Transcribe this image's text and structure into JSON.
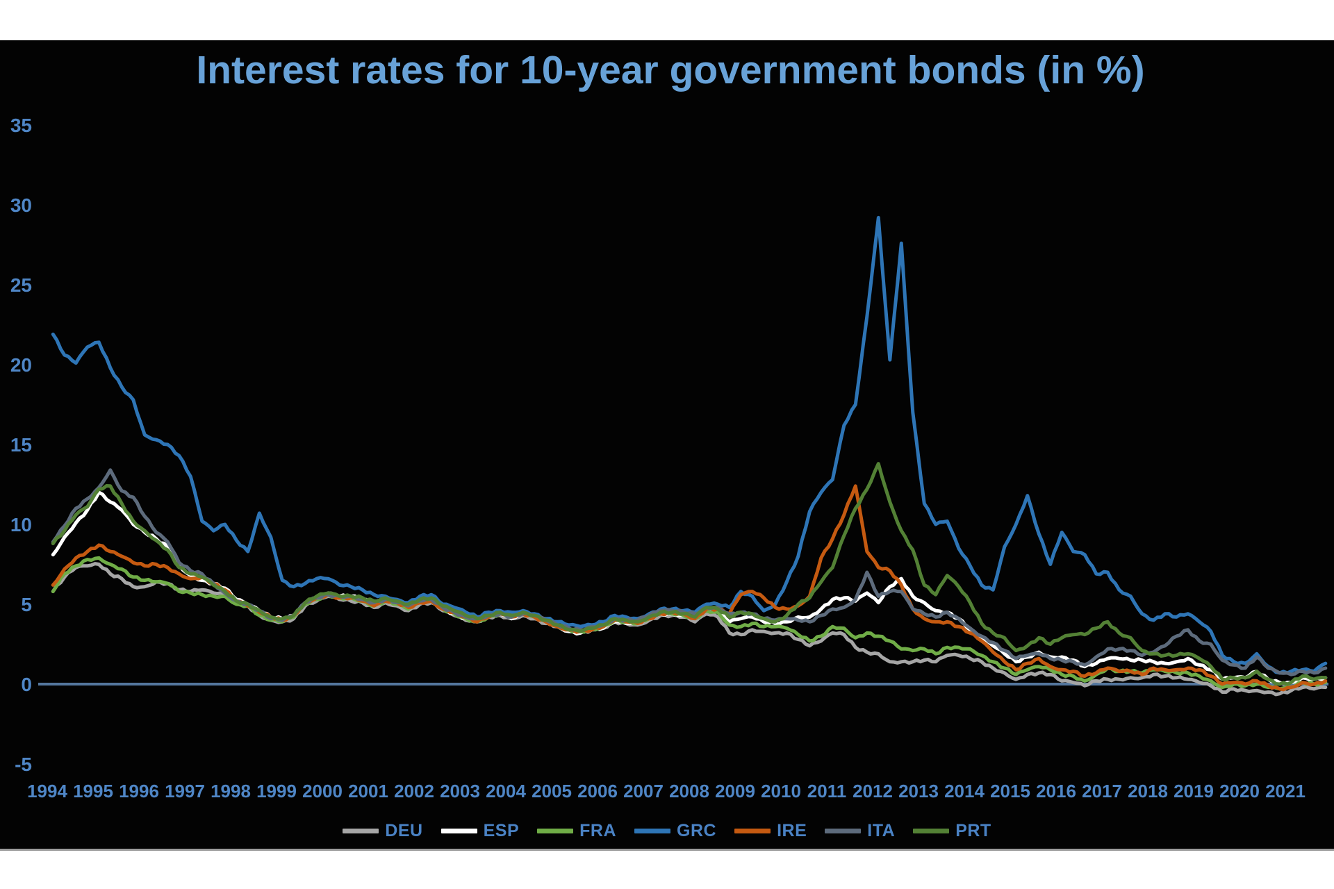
{
  "title": "Interest rates for 10-year government bonds (in %)",
  "style": {
    "page_background": "#ffffff",
    "panel_background": "#030303",
    "title_color": "#68a2d8",
    "tick_color": "#4f86c6",
    "legend_label_color": "#4a82c4",
    "zero_line_color": "#54779e"
  },
  "chart_data": {
    "type": "line",
    "title": "Interest rates for 10-year government bonds (in %)",
    "xlabel": "",
    "ylabel": "",
    "x_unit": "year, monthly series shown quarterly",
    "x_start": 1994.125,
    "x_step": 0.25,
    "x_range": [
      1994,
      2022
    ],
    "ylim": [
      -5,
      35
    ],
    "grid": "off",
    "zero_line": true,
    "legend_position": "bottom",
    "y_axis": {
      "ticks": [
        35,
        30,
        25,
        20,
        15,
        10,
        5,
        0,
        -5
      ]
    },
    "x_tick_labels": [
      "1994",
      "1995",
      "1996",
      "1997",
      "1998",
      "1999",
      "2000",
      "2001",
      "2002",
      "2003",
      "2004",
      "2005",
      "2006",
      "2007",
      "2008",
      "2009",
      "2010",
      "2011",
      "2012",
      "2013",
      "2014",
      "2015",
      "2016",
      "2017",
      "2018",
      "2019",
      "2020",
      "2021"
    ],
    "series": [
      {
        "name": "DEU",
        "color": "#a6a6a6",
        "values": [
          5.8,
          6.7,
          7.3,
          7.4,
          7.5,
          6.9,
          6.6,
          6.1,
          6.1,
          6.4,
          6.3,
          5.9,
          5.8,
          5.9,
          5.7,
          5.6,
          5.1,
          4.9,
          4.3,
          4.0,
          3.9,
          4.1,
          4.9,
          5.2,
          5.5,
          5.3,
          5.2,
          5.1,
          4.8,
          5.1,
          4.9,
          4.6,
          5.0,
          5.1,
          4.6,
          4.3,
          4.0,
          3.9,
          4.2,
          4.3,
          4.1,
          4.3,
          4.1,
          3.8,
          3.6,
          3.3,
          3.2,
          3.4,
          3.5,
          3.9,
          3.8,
          3.7,
          4.0,
          4.3,
          4.3,
          4.2,
          3.9,
          4.4,
          4.2,
          3.2,
          3.1,
          3.4,
          3.3,
          3.2,
          3.2,
          2.8,
          2.4,
          2.7,
          3.2,
          3.1,
          2.3,
          2.0,
          1.9,
          1.4,
          1.4,
          1.4,
          1.5,
          1.4,
          1.8,
          1.8,
          1.6,
          1.4,
          1.0,
          0.7,
          0.3,
          0.6,
          0.7,
          0.6,
          0.2,
          0.1,
          -0.1,
          0.2,
          0.3,
          0.3,
          0.4,
          0.4,
          0.6,
          0.5,
          0.4,
          0.3,
          0.1,
          -0.1,
          -0.5,
          -0.3,
          -0.4,
          -0.4,
          -0.5,
          -0.6,
          -0.4,
          -0.2,
          -0.3,
          -0.2
        ]
      },
      {
        "name": "ESP",
        "color": "#ffffff",
        "values": [
          8.1,
          9.2,
          10.1,
          10.9,
          12.0,
          11.4,
          10.9,
          10.0,
          9.5,
          9.1,
          8.6,
          7.4,
          6.8,
          6.5,
          6.3,
          6.0,
          5.3,
          5.0,
          4.6,
          4.2,
          4.1,
          4.3,
          5.1,
          5.4,
          5.7,
          5.5,
          5.5,
          5.3,
          5.1,
          5.3,
          5.1,
          4.9,
          5.2,
          5.3,
          4.7,
          4.4,
          4.1,
          3.9,
          4.2,
          4.4,
          4.1,
          4.4,
          4.2,
          3.9,
          3.6,
          3.3,
          3.2,
          3.4,
          3.5,
          3.9,
          3.8,
          3.8,
          4.1,
          4.4,
          4.4,
          4.3,
          4.2,
          4.7,
          4.6,
          3.9,
          4.1,
          4.2,
          3.9,
          3.8,
          3.9,
          4.2,
          4.2,
          4.7,
          5.3,
          5.4,
          5.2,
          5.7,
          5.1,
          6.1,
          6.6,
          5.5,
          5.1,
          4.6,
          4.5,
          4.1,
          3.4,
          2.9,
          2.4,
          1.9,
          1.4,
          1.7,
          2.0,
          1.7,
          1.7,
          1.5,
          1.1,
          1.3,
          1.6,
          1.6,
          1.5,
          1.5,
          1.4,
          1.3,
          1.4,
          1.6,
          1.2,
          0.9,
          0.3,
          0.4,
          0.4,
          0.8,
          0.3,
          0.1,
          0.1,
          0.4,
          0.3,
          0.4
        ]
      },
      {
        "name": "FRA",
        "color": "#70ad47",
        "values": [
          5.8,
          6.9,
          7.4,
          7.8,
          7.9,
          7.5,
          7.2,
          6.7,
          6.5,
          6.4,
          6.3,
          5.8,
          5.7,
          5.6,
          5.5,
          5.5,
          5.0,
          4.9,
          4.3,
          4.0,
          3.9,
          4.2,
          5.0,
          5.3,
          5.6,
          5.4,
          5.4,
          5.2,
          4.9,
          5.2,
          5.0,
          4.7,
          5.1,
          5.2,
          4.7,
          4.4,
          4.1,
          3.9,
          4.2,
          4.4,
          4.2,
          4.4,
          4.2,
          3.9,
          3.6,
          3.4,
          3.3,
          3.4,
          3.6,
          4.0,
          3.9,
          3.8,
          4.1,
          4.4,
          4.4,
          4.3,
          4.1,
          4.6,
          4.5,
          3.7,
          3.6,
          3.8,
          3.6,
          3.6,
          3.5,
          3.1,
          2.7,
          3.0,
          3.6,
          3.5,
          2.9,
          3.2,
          3.0,
          2.7,
          2.2,
          2.1,
          2.2,
          1.9,
          2.3,
          2.3,
          2.2,
          1.8,
          1.4,
          1.0,
          0.6,
          0.9,
          1.1,
          0.9,
          0.6,
          0.5,
          0.2,
          0.6,
          1.0,
          0.8,
          0.8,
          0.7,
          0.9,
          0.8,
          0.7,
          0.7,
          0.5,
          0.2,
          -0.2,
          0.0,
          -0.1,
          0.0,
          -0.2,
          -0.3,
          -0.2,
          0.1,
          0.0,
          0.1
        ]
      },
      {
        "name": "GRC",
        "color": "#2e75b6",
        "values": [
          21.9,
          20.6,
          20.1,
          21.1,
          21.4,
          19.8,
          18.6,
          17.8,
          15.6,
          15.3,
          15.0,
          14.3,
          13.0,
          10.2,
          9.6,
          10.0,
          9.0,
          8.3,
          10.7,
          9.2,
          6.5,
          6.1,
          6.3,
          6.6,
          6.6,
          6.2,
          6.1,
          5.9,
          5.6,
          5.5,
          5.3,
          5.1,
          5.5,
          5.6,
          5.0,
          4.8,
          4.5,
          4.2,
          4.5,
          4.6,
          4.5,
          4.6,
          4.4,
          4.1,
          3.9,
          3.7,
          3.6,
          3.7,
          3.9,
          4.3,
          4.2,
          4.1,
          4.4,
          4.7,
          4.7,
          4.6,
          4.5,
          5.0,
          5.0,
          4.8,
          5.8,
          5.5,
          4.6,
          5.0,
          6.4,
          8.0,
          10.8,
          12.0,
          12.8,
          16.2,
          17.5,
          23.0,
          29.2,
          20.3,
          27.6,
          17.0,
          11.3,
          10.0,
          10.2,
          8.5,
          7.4,
          6.2,
          5.9,
          8.6,
          10.0,
          11.8,
          9.4,
          7.5,
          9.5,
          8.3,
          8.1,
          6.9,
          7.0,
          5.9,
          5.5,
          4.4,
          4.0,
          4.4,
          4.2,
          4.4,
          3.9,
          3.3,
          1.8,
          1.4,
          1.3,
          1.9,
          1.1,
          0.7,
          0.8,
          0.9,
          0.8,
          1.3
        ]
      },
      {
        "name": "IRE",
        "color": "#c55a11",
        "values": [
          6.2,
          7.2,
          7.9,
          8.3,
          8.7,
          8.3,
          8.0,
          7.6,
          7.4,
          7.5,
          7.3,
          6.9,
          6.6,
          6.7,
          6.3,
          5.9,
          5.2,
          4.9,
          4.5,
          4.2,
          4.0,
          4.3,
          5.1,
          5.4,
          5.6,
          5.4,
          5.4,
          5.2,
          4.9,
          5.2,
          5.1,
          4.8,
          5.1,
          5.2,
          4.7,
          4.5,
          4.2,
          3.9,
          4.2,
          4.4,
          4.2,
          4.4,
          4.2,
          3.9,
          3.6,
          3.4,
          3.3,
          3.4,
          3.6,
          4.0,
          3.9,
          3.8,
          4.1,
          4.4,
          4.5,
          4.4,
          4.1,
          4.7,
          4.7,
          4.4,
          5.6,
          5.8,
          5.4,
          4.8,
          4.7,
          4.9,
          5.5,
          7.9,
          9.1,
          10.6,
          12.4,
          8.3,
          7.3,
          7.1,
          6.2,
          4.7,
          4.1,
          3.9,
          3.9,
          3.6,
          3.2,
          2.7,
          2.0,
          1.4,
          0.9,
          1.3,
          1.6,
          1.1,
          0.9,
          0.8,
          0.5,
          0.7,
          1.0,
          0.8,
          0.8,
          0.6,
          1.0,
          0.9,
          0.9,
          1.0,
          0.9,
          0.5,
          0.0,
          0.1,
          0.0,
          0.2,
          -0.1,
          -0.3,
          -0.2,
          0.1,
          0.0,
          0.2
        ]
      },
      {
        "name": "ITA",
        "color": "#5d6b7c",
        "values": [
          8.9,
          9.9,
          11.0,
          11.6,
          12.3,
          13.4,
          12.1,
          11.7,
          10.5,
          9.5,
          8.9,
          7.6,
          7.1,
          6.9,
          6.3,
          5.7,
          5.2,
          5.0,
          4.6,
          4.1,
          4.0,
          4.3,
          5.1,
          5.4,
          5.6,
          5.5,
          5.5,
          5.3,
          5.1,
          5.3,
          5.1,
          4.9,
          5.2,
          5.3,
          4.8,
          4.5,
          4.2,
          4.1,
          4.3,
          4.4,
          4.2,
          4.4,
          4.3,
          4.0,
          3.7,
          3.5,
          3.4,
          3.6,
          3.7,
          4.1,
          4.0,
          4.0,
          4.3,
          4.6,
          4.6,
          4.5,
          4.4,
          4.8,
          4.8,
          4.4,
          4.5,
          4.4,
          4.1,
          4.0,
          4.1,
          4.0,
          3.9,
          4.3,
          4.7,
          4.8,
          5.3,
          7.0,
          5.5,
          5.8,
          5.8,
          4.7,
          4.4,
          4.2,
          4.5,
          4.1,
          3.5,
          3.0,
          2.6,
          2.1,
          1.6,
          1.8,
          1.9,
          1.6,
          1.5,
          1.4,
          1.2,
          1.7,
          2.2,
          2.2,
          2.1,
          1.8,
          2.0,
          2.4,
          3.0,
          3.4,
          2.7,
          2.5,
          1.5,
          1.2,
          1.0,
          1.7,
          1.0,
          0.7,
          0.6,
          0.8,
          0.7,
          1.0
        ]
      },
      {
        "name": "PRT",
        "color": "#538135",
        "values": [
          8.8,
          9.6,
          10.6,
          11.1,
          12.2,
          12.4,
          11.3,
          10.2,
          9.6,
          9.0,
          8.4,
          7.3,
          6.9,
          6.7,
          6.2,
          5.8,
          5.2,
          5.0,
          4.6,
          4.2,
          4.1,
          4.3,
          5.1,
          5.5,
          5.7,
          5.5,
          5.5,
          5.4,
          5.2,
          5.4,
          5.2,
          5.0,
          5.3,
          5.4,
          4.9,
          4.6,
          4.3,
          4.1,
          4.3,
          4.5,
          4.3,
          4.5,
          4.3,
          4.0,
          3.7,
          3.4,
          3.3,
          3.5,
          3.7,
          4.1,
          4.0,
          3.9,
          4.2,
          4.5,
          4.5,
          4.4,
          4.2,
          4.8,
          4.7,
          4.2,
          4.5,
          4.4,
          4.1,
          3.9,
          4.3,
          5.0,
          5.4,
          6.4,
          7.3,
          9.3,
          11.0,
          12.2,
          13.8,
          11.4,
          9.6,
          8.4,
          6.2,
          5.6,
          6.8,
          6.1,
          5.1,
          3.8,
          3.2,
          2.9,
          2.1,
          2.4,
          2.9,
          2.5,
          2.9,
          3.1,
          3.1,
          3.5,
          3.9,
          3.2,
          2.9,
          2.1,
          1.9,
          1.8,
          1.8,
          1.9,
          1.6,
          1.1,
          0.3,
          0.4,
          0.4,
          0.8,
          0.3,
          0.0,
          0.1,
          0.5,
          0.3,
          0.4
        ]
      }
    ]
  }
}
